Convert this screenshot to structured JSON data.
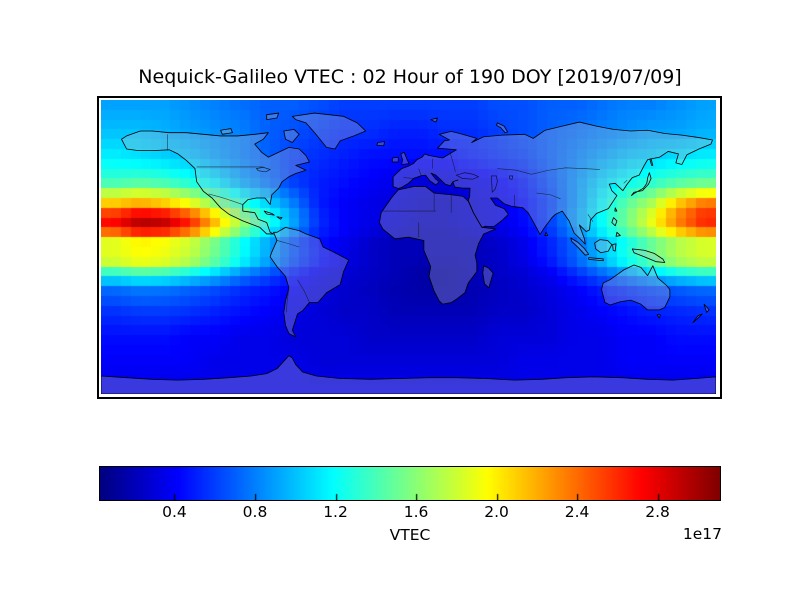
{
  "figure": {
    "background": "#ffffff",
    "frame_color": "#000000",
    "text_color": "#000000"
  },
  "title": "Nequick-Galileo VTEC : 02 Hour of 190 DOY [2019/07/09]",
  "colorbar": {
    "label": "VTEC",
    "offset_text": "1e17",
    "tick_labels": [
      "0.4",
      "0.8",
      "1.2",
      "1.6",
      "2.0",
      "2.4",
      "2.8"
    ]
  },
  "chart_data": {
    "type": "heatmap",
    "title": "Nequick-Galileo VTEC : 02 Hour of 190 DOY [2019/07/09]",
    "colormap": "jet",
    "colorbar_label": "VTEC",
    "scale_offset": "1e17",
    "vmin": 0.03,
    "vmax": 3.11,
    "colorbar_ticks": [
      0.4,
      0.8,
      1.2,
      1.6,
      2.0,
      2.4,
      2.8
    ],
    "projection": "equirectangular",
    "lon_range": [
      -180,
      180
    ],
    "lat_range": [
      -90,
      90
    ],
    "grid_lons": [
      -172.5,
      -157.5,
      -142.5,
      -127.5,
      -112.5,
      -97.5,
      -82.5,
      -67.5,
      -52.5,
      -37.5,
      -22.5,
      -7.5,
      7.5,
      22.5,
      37.5,
      52.5,
      67.5,
      82.5,
      97.5,
      112.5,
      127.5,
      142.5,
      157.5,
      172.5
    ],
    "grid_lats": [
      87.5,
      70,
      55,
      40,
      27,
      17,
      7,
      2,
      -7,
      -13,
      -25,
      -40,
      -55,
      -70,
      -87.5
    ],
    "values": [
      [
        0.9,
        0.9,
        0.9,
        0.85,
        0.8,
        0.75,
        0.7,
        0.7,
        0.65,
        0.6,
        0.6,
        0.6,
        0.6,
        0.6,
        0.6,
        0.65,
        0.65,
        0.7,
        0.7,
        0.75,
        0.8,
        0.8,
        0.85,
        0.9
      ],
      [
        1.0,
        1.0,
        0.95,
        0.9,
        0.85,
        0.8,
        0.7,
        0.65,
        0.6,
        0.55,
        0.55,
        0.5,
        0.5,
        0.55,
        0.55,
        0.6,
        0.65,
        0.7,
        0.75,
        0.8,
        0.85,
        0.9,
        0.9,
        0.95
      ],
      [
        1.15,
        1.1,
        1.05,
        1.0,
        0.9,
        0.8,
        0.7,
        0.6,
        0.55,
        0.5,
        0.45,
        0.45,
        0.45,
        0.45,
        0.5,
        0.55,
        0.6,
        0.7,
        0.8,
        0.9,
        1.0,
        1.05,
        1.1,
        1.15
      ],
      [
        1.35,
        1.4,
        1.35,
        1.25,
        1.1,
        0.9,
        0.75,
        0.6,
        0.5,
        0.45,
        0.4,
        0.35,
        0.3,
        0.3,
        0.35,
        0.4,
        0.5,
        0.65,
        0.85,
        1.05,
        1.2,
        1.3,
        1.4,
        1.45
      ],
      [
        2.1,
        2.2,
        2.1,
        1.9,
        1.6,
        1.3,
        1.05,
        0.8,
        0.5,
        0.4,
        0.35,
        0.3,
        0.25,
        0.25,
        0.3,
        0.35,
        0.45,
        0.6,
        0.85,
        1.15,
        1.45,
        1.7,
        2.1,
        2.35
      ],
      [
        2.8,
        3.05,
        3.0,
        2.7,
        2.2,
        1.7,
        1.3,
        0.95,
        0.55,
        0.4,
        0.35,
        0.3,
        0.25,
        0.25,
        0.3,
        0.35,
        0.45,
        0.6,
        0.9,
        1.2,
        1.55,
        1.95,
        2.4,
        2.7
      ],
      [
        2.3,
        2.55,
        2.5,
        2.25,
        1.85,
        1.45,
        1.1,
        0.8,
        0.5,
        0.4,
        0.3,
        0.25,
        0.2,
        0.2,
        0.25,
        0.3,
        0.4,
        0.55,
        0.8,
        1.1,
        1.4,
        1.7,
        2.0,
        2.2
      ],
      [
        1.75,
        1.85,
        1.8,
        1.7,
        1.45,
        1.15,
        0.9,
        0.65,
        0.45,
        0.35,
        0.25,
        0.2,
        0.2,
        0.2,
        0.2,
        0.25,
        0.35,
        0.5,
        0.7,
        0.95,
        1.2,
        1.45,
        1.65,
        1.75
      ],
      [
        1.95,
        2.05,
        2.0,
        1.85,
        1.55,
        1.25,
        0.95,
        0.7,
        0.5,
        0.35,
        0.25,
        0.2,
        0.2,
        0.2,
        0.2,
        0.25,
        0.35,
        0.5,
        0.72,
        1.0,
        1.3,
        1.55,
        1.8,
        1.9
      ],
      [
        1.5,
        1.6,
        1.55,
        1.4,
        1.2,
        0.95,
        0.75,
        0.55,
        0.4,
        0.3,
        0.25,
        0.2,
        0.15,
        0.15,
        0.2,
        0.25,
        0.3,
        0.4,
        0.6,
        0.8,
        1.0,
        1.2,
        1.4,
        1.5
      ],
      [
        0.75,
        0.8,
        0.78,
        0.72,
        0.65,
        0.55,
        0.48,
        0.4,
        0.32,
        0.27,
        0.22,
        0.18,
        0.15,
        0.15,
        0.18,
        0.22,
        0.27,
        0.32,
        0.4,
        0.5,
        0.58,
        0.65,
        0.7,
        0.75
      ],
      [
        0.55,
        0.58,
        0.58,
        0.55,
        0.5,
        0.45,
        0.4,
        0.35,
        0.3,
        0.25,
        0.25,
        0.2,
        0.2,
        0.2,
        0.2,
        0.25,
        0.25,
        0.3,
        0.35,
        0.4,
        0.45,
        0.5,
        0.52,
        0.55
      ],
      [
        0.45,
        0.45,
        0.45,
        0.4,
        0.4,
        0.35,
        0.35,
        0.3,
        0.3,
        0.3,
        0.25,
        0.25,
        0.25,
        0.25,
        0.25,
        0.3,
        0.3,
        0.3,
        0.35,
        0.35,
        0.4,
        0.4,
        0.45,
        0.45
      ],
      [
        0.4,
        0.4,
        0.4,
        0.4,
        0.35,
        0.35,
        0.35,
        0.35,
        0.3,
        0.3,
        0.3,
        0.3,
        0.3,
        0.3,
        0.3,
        0.3,
        0.35,
        0.35,
        0.35,
        0.35,
        0.4,
        0.4,
        0.4,
        0.4
      ],
      [
        0.35,
        0.35,
        0.35,
        0.35,
        0.35,
        0.35,
        0.35,
        0.35,
        0.35,
        0.35,
        0.35,
        0.35,
        0.35,
        0.35,
        0.35,
        0.35,
        0.35,
        0.35,
        0.35,
        0.35,
        0.35,
        0.35,
        0.35,
        0.35
      ]
    ]
  }
}
